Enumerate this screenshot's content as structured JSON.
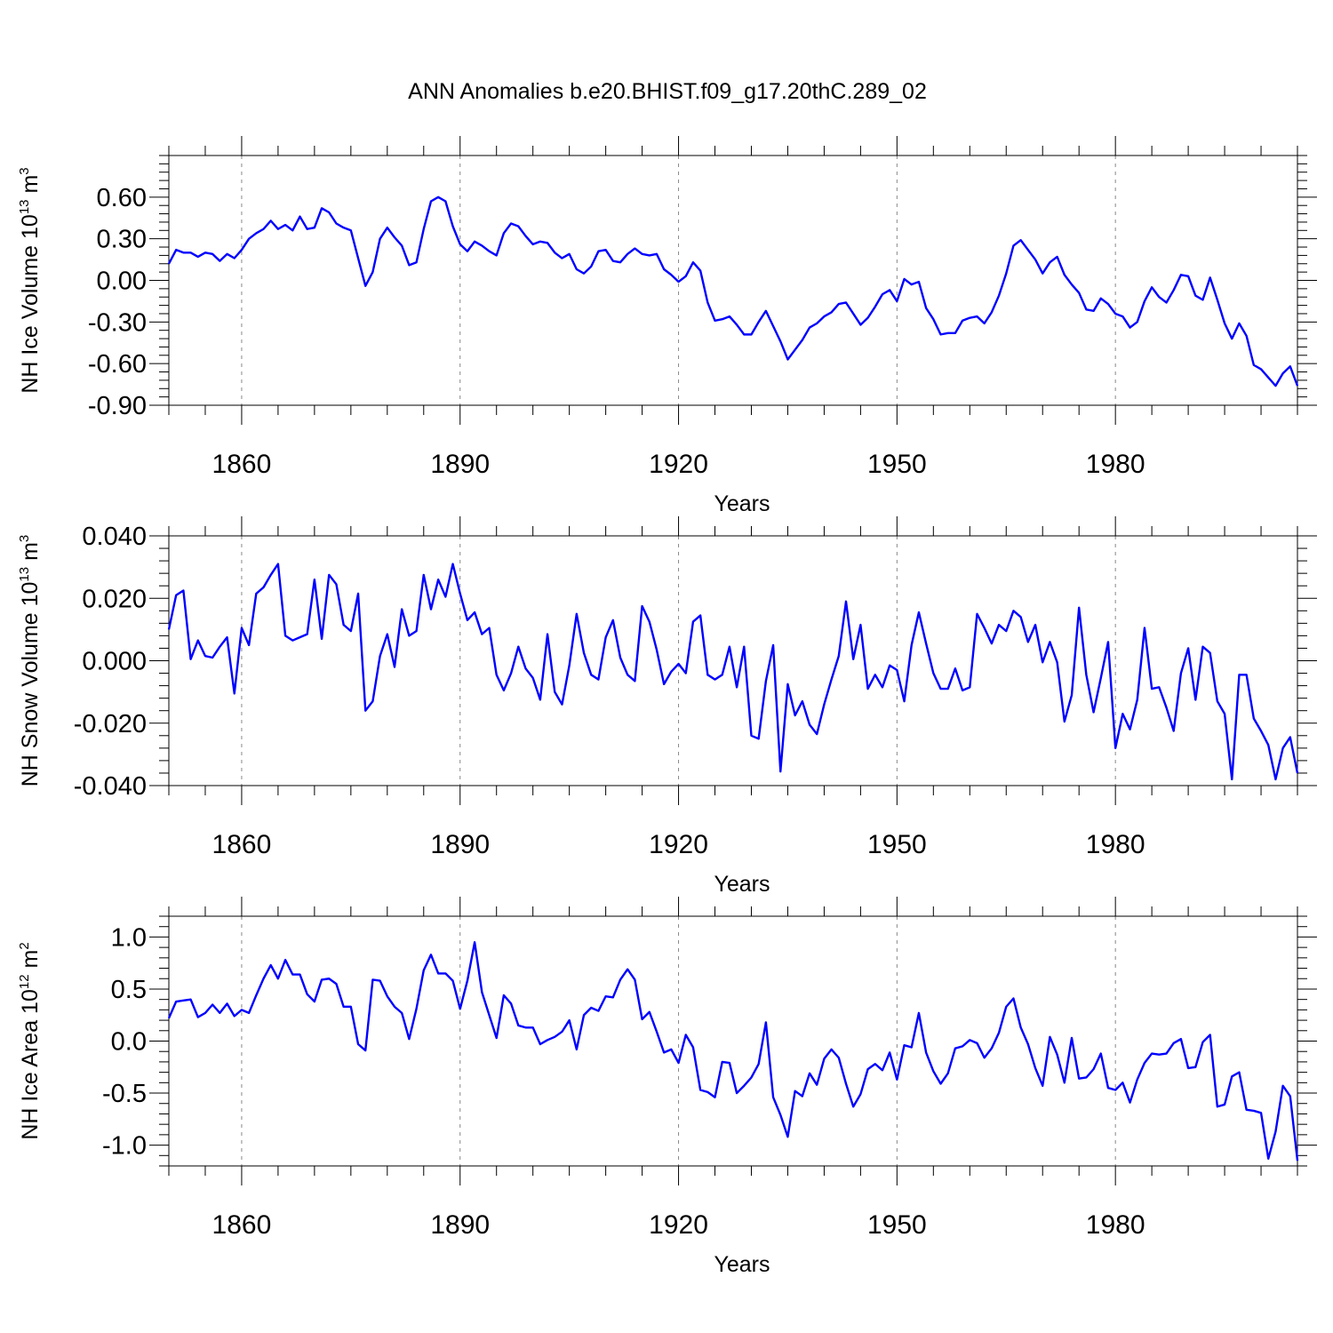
{
  "title": "ANN Anomalies b.e20.BHIST.f09_g17.20thC.289_02",
  "line_color": "#0000ff",
  "chart_data": [
    {
      "type": "line",
      "id": "ice-volume",
      "ylabel": {
        "main": "NH Ice Volume 10",
        "sup": "13",
        "unit": " m",
        "unitsup": "3"
      },
      "xlabel": "Years",
      "xlim": [
        1850,
        2005
      ],
      "ylim": [
        -0.9,
        0.9
      ],
      "yticks": [
        -0.9,
        -0.6,
        -0.3,
        0.0,
        0.3,
        0.6
      ],
      "ytick_labels": [
        "-0.90",
        "-0.60",
        "-0.30",
        "0.00",
        "0.30",
        "0.60"
      ],
      "xticks": [
        1860,
        1890,
        1920,
        1950,
        1980
      ],
      "xtick_labels": [
        "1860",
        "1890",
        "1920",
        "1950",
        "1980"
      ],
      "start_year": 1850,
      "values": [
        0.12,
        0.22,
        0.2,
        0.2,
        0.17,
        0.2,
        0.19,
        0.14,
        0.19,
        0.16,
        0.22,
        0.3,
        0.34,
        0.37,
        0.43,
        0.37,
        0.4,
        0.36,
        0.46,
        0.37,
        0.38,
        0.52,
        0.49,
        0.41,
        0.38,
        0.36,
        0.16,
        -0.04,
        0.06,
        0.3,
        0.38,
        0.31,
        0.25,
        0.11,
        0.13,
        0.37,
        0.57,
        0.6,
        0.57,
        0.39,
        0.26,
        0.21,
        0.28,
        0.25,
        0.21,
        0.18,
        0.34,
        0.41,
        0.39,
        0.32,
        0.26,
        0.28,
        0.27,
        0.2,
        0.16,
        0.19,
        0.08,
        0.05,
        0.1,
        0.21,
        0.22,
        0.14,
        0.13,
        0.19,
        0.23,
        0.19,
        0.18,
        0.19,
        0.08,
        0.04,
        -0.01,
        0.03,
        0.13,
        0.07,
        -0.16,
        -0.29,
        -0.28,
        -0.26,
        -0.32,
        -0.39,
        -0.39,
        -0.3,
        -0.22,
        -0.33,
        -0.44,
        -0.57,
        -0.5,
        -0.43,
        -0.34,
        -0.31,
        -0.26,
        -0.23,
        -0.17,
        -0.16,
        -0.24,
        -0.32,
        -0.27,
        -0.19,
        -0.1,
        -0.07,
        -0.15,
        0.01,
        -0.03,
        -0.01,
        -0.2,
        -0.28,
        -0.39,
        -0.38,
        -0.38,
        -0.29,
        -0.27,
        -0.26,
        -0.31,
        -0.23,
        -0.11,
        0.05,
        0.25,
        0.29,
        0.22,
        0.15,
        0.05,
        0.13,
        0.17,
        0.04,
        -0.03,
        -0.09,
        -0.21,
        -0.22,
        -0.13,
        -0.17,
        -0.24,
        -0.26,
        -0.34,
        -0.3,
        -0.15,
        -0.05,
        -0.12,
        -0.16,
        -0.07,
        0.04,
        0.03,
        -0.11,
        -0.14,
        0.02,
        -0.14,
        -0.31,
        -0.42,
        -0.31,
        -0.4,
        -0.61,
        -0.64,
        -0.7,
        -0.76,
        -0.67,
        -0.62,
        -0.76
      ]
    },
    {
      "type": "line",
      "id": "snow-volume",
      "ylabel": {
        "main": "NH Snow Volume 10",
        "sup": "13",
        "unit": " m",
        "unitsup": "3"
      },
      "xlabel": "Years",
      "xlim": [
        1850,
        2005
      ],
      "ylim": [
        -0.04,
        0.04
      ],
      "yticks": [
        -0.04,
        -0.02,
        0.0,
        0.02,
        0.04
      ],
      "ytick_labels": [
        "-0.040",
        "-0.020",
        "0.000",
        "0.020",
        "0.040"
      ],
      "xticks": [
        1860,
        1890,
        1920,
        1950,
        1980
      ],
      "xtick_labels": [
        "1860",
        "1890",
        "1920",
        "1950",
        "1980"
      ],
      "start_year": 1850,
      "values": [
        0.01,
        0.021,
        0.0225,
        0.0005,
        0.0065,
        0.0015,
        0.001,
        0.0045,
        0.0075,
        -0.0105,
        0.0105,
        0.005,
        0.0215,
        0.0235,
        0.0275,
        0.031,
        0.008,
        0.0065,
        0.0075,
        0.0085,
        0.026,
        0.007,
        0.0275,
        0.0245,
        0.0115,
        0.0095,
        0.0215,
        -0.016,
        -0.013,
        0.0015,
        0.0085,
        -0.002,
        0.0165,
        0.008,
        0.0095,
        0.0275,
        0.0165,
        0.026,
        0.0205,
        0.031,
        0.0215,
        0.013,
        0.0155,
        0.0085,
        0.0105,
        -0.0045,
        -0.0095,
        -0.004,
        0.0045,
        -0.0025,
        -0.0055,
        -0.0125,
        0.0085,
        -0.01,
        -0.014,
        -0.0015,
        0.015,
        0.0025,
        -0.0045,
        -0.006,
        0.0075,
        0.013,
        0.001,
        -0.0045,
        -0.0065,
        0.0175,
        0.0125,
        0.0035,
        -0.0075,
        -0.0035,
        -0.001,
        -0.004,
        0.0125,
        0.0145,
        -0.0045,
        -0.006,
        -0.0045,
        0.0045,
        -0.0085,
        0.0045,
        -0.024,
        -0.025,
        -0.0065,
        0.005,
        -0.0355,
        -0.0075,
        -0.0175,
        -0.013,
        -0.0205,
        -0.0235,
        -0.014,
        -0.006,
        0.0015,
        0.019,
        0.0005,
        0.0115,
        -0.009,
        -0.0045,
        -0.0085,
        -0.0015,
        -0.003,
        -0.013,
        0.005,
        0.0155,
        0.0055,
        -0.004,
        -0.009,
        -0.009,
        -0.0025,
        -0.0095,
        -0.0085,
        0.015,
        0.0105,
        0.0055,
        0.0115,
        0.0095,
        0.016,
        0.014,
        0.006,
        0.0115,
        -0.0005,
        0.006,
        -0.0005,
        -0.0195,
        -0.011,
        0.017,
        -0.0045,
        -0.0165,
        -0.0055,
        0.006,
        -0.028,
        -0.017,
        -0.022,
        -0.0125,
        0.0105,
        -0.009,
        -0.0085,
        -0.015,
        -0.0225,
        -0.004,
        0.004,
        -0.0125,
        0.0045,
        0.0025,
        -0.013,
        -0.017,
        -0.038,
        -0.0045,
        -0.0045,
        -0.0185,
        -0.0225,
        -0.027,
        -0.038,
        -0.028,
        -0.0245,
        -0.036
      ]
    },
    {
      "type": "line",
      "id": "ice-area",
      "ylabel": {
        "main": "NH Ice Area 10",
        "sup": "12",
        "unit": " m",
        "unitsup": "2"
      },
      "xlabel": "Years",
      "xlim": [
        1850,
        2005
      ],
      "ylim": [
        -1.2,
        1.2
      ],
      "yticks": [
        -1.0,
        -0.5,
        0.0,
        0.5,
        1.0
      ],
      "ytick_labels": [
        "-1.0",
        "-0.5",
        "0.0",
        "0.5",
        "1.0"
      ],
      "xticks": [
        1860,
        1890,
        1920,
        1950,
        1980
      ],
      "xtick_labels": [
        "1860",
        "1890",
        "1920",
        "1950",
        "1980"
      ],
      "start_year": 1850,
      "values": [
        0.22,
        0.38,
        0.39,
        0.4,
        0.23,
        0.27,
        0.35,
        0.27,
        0.36,
        0.24,
        0.3,
        0.27,
        0.44,
        0.6,
        0.73,
        0.6,
        0.78,
        0.64,
        0.64,
        0.45,
        0.38,
        0.59,
        0.6,
        0.55,
        0.33,
        0.33,
        -0.03,
        -0.09,
        0.59,
        0.58,
        0.43,
        0.33,
        0.27,
        0.02,
        0.31,
        0.68,
        0.83,
        0.65,
        0.65,
        0.58,
        0.31,
        0.58,
        0.95,
        0.47,
        0.25,
        0.03,
        0.44,
        0.36,
        0.15,
        0.13,
        0.13,
        -0.03,
        0.01,
        0.04,
        0.09,
        0.2,
        -0.08,
        0.25,
        0.32,
        0.29,
        0.43,
        0.42,
        0.59,
        0.69,
        0.59,
        0.21,
        0.28,
        0.09,
        -0.11,
        -0.08,
        -0.21,
        0.06,
        -0.06,
        -0.47,
        -0.49,
        -0.54,
        -0.2,
        -0.21,
        -0.5,
        -0.43,
        -0.35,
        -0.22,
        0.18,
        -0.54,
        -0.71,
        -0.92,
        -0.48,
        -0.53,
        -0.31,
        -0.42,
        -0.17,
        -0.08,
        -0.16,
        -0.41,
        -0.63,
        -0.51,
        -0.27,
        -0.22,
        -0.28,
        -0.11,
        -0.37,
        -0.04,
        -0.06,
        0.27,
        -0.11,
        -0.29,
        -0.41,
        -0.31,
        -0.07,
        -0.05,
        0.01,
        -0.02,
        -0.16,
        -0.07,
        0.08,
        0.33,
        0.41,
        0.13,
        -0.03,
        -0.26,
        -0.43,
        0.04,
        -0.13,
        -0.4,
        0.03,
        -0.36,
        -0.35,
        -0.27,
        -0.12,
        -0.45,
        -0.47,
        -0.4,
        -0.59,
        -0.37,
        -0.21,
        -0.12,
        -0.13,
        -0.12,
        -0.02,
        0.02,
        -0.26,
        -0.25,
        -0.01,
        0.06,
        -0.63,
        -0.61,
        -0.34,
        -0.3,
        -0.66,
        -0.67,
        -0.69,
        -1.13,
        -0.87,
        -0.43,
        -0.53,
        -1.15
      ]
    }
  ]
}
